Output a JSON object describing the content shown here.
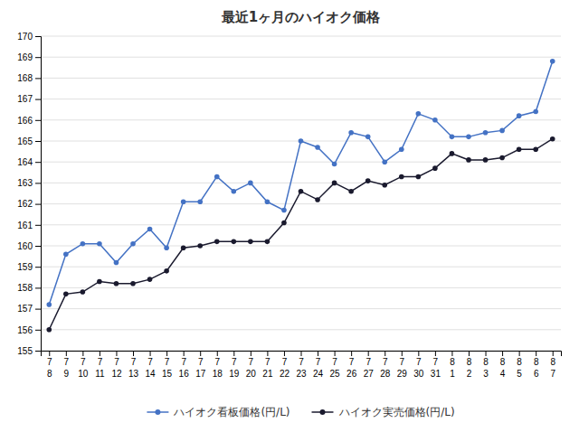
{
  "chart_data": {
    "type": "line",
    "title": "最近1ヶ月のハイオク価格",
    "categories": [
      [
        "7",
        "8"
      ],
      [
        "7",
        "9"
      ],
      [
        "7",
        "10"
      ],
      [
        "7",
        "11"
      ],
      [
        "7",
        "12"
      ],
      [
        "7",
        "13"
      ],
      [
        "7",
        "14"
      ],
      [
        "7",
        "15"
      ],
      [
        "7",
        "16"
      ],
      [
        "7",
        "17"
      ],
      [
        "7",
        "18"
      ],
      [
        "7",
        "19"
      ],
      [
        "7",
        "20"
      ],
      [
        "7",
        "21"
      ],
      [
        "7",
        "22"
      ],
      [
        "7",
        "23"
      ],
      [
        "7",
        "24"
      ],
      [
        "7",
        "25"
      ],
      [
        "7",
        "26"
      ],
      [
        "7",
        "27"
      ],
      [
        "7",
        "28"
      ],
      [
        "7",
        "29"
      ],
      [
        "7",
        "30"
      ],
      [
        "7",
        "31"
      ],
      [
        "8",
        "1"
      ],
      [
        "8",
        "2"
      ],
      [
        "8",
        "3"
      ],
      [
        "8",
        "4"
      ],
      [
        "8",
        "5"
      ],
      [
        "8",
        "6"
      ],
      [
        "8",
        "7"
      ]
    ],
    "series": [
      {
        "name": "ハイオク看板価格(円/L)",
        "color": "#4472C4",
        "marker": "circle",
        "line_style": "solid",
        "values": [
          157.2,
          159.6,
          160.1,
          160.1,
          159.2,
          160.1,
          160.8,
          159.9,
          162.1,
          162.1,
          163.3,
          162.6,
          163.0,
          162.1,
          161.7,
          165.0,
          164.7,
          163.9,
          165.4,
          165.2,
          164.0,
          164.6,
          166.3,
          166.0,
          165.2,
          165.2,
          165.4,
          165.5,
          166.2,
          166.4,
          168.8
        ]
      },
      {
        "name": "ハイオク実売価格(円/L)",
        "color": "#1a1a2e",
        "marker": "circle",
        "line_style": "solid",
        "values": [
          156.0,
          157.7,
          157.8,
          158.3,
          158.2,
          158.2,
          158.4,
          158.8,
          159.9,
          160.0,
          160.2,
          160.2,
          160.2,
          160.2,
          161.1,
          162.6,
          162.2,
          163.0,
          162.6,
          163.1,
          162.9,
          163.3,
          163.3,
          163.7,
          164.4,
          164.1,
          164.1,
          164.2,
          164.6,
          164.6,
          165.1
        ]
      }
    ],
    "ylim": [
      155,
      170
    ],
    "yticks": [
      155,
      156,
      157,
      158,
      159,
      160,
      161,
      162,
      163,
      164,
      165,
      166,
      167,
      168,
      169,
      170
    ],
    "grid": true,
    "legend": "bottom"
  }
}
